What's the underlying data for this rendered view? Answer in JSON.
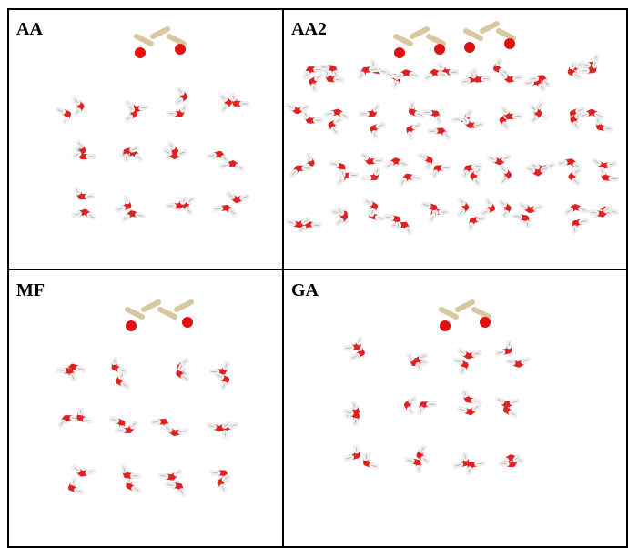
{
  "panels": [
    {
      "label": "AA"
    },
    {
      "label": "AA2"
    },
    {
      "label": "MF"
    },
    {
      "label": "GA"
    }
  ]
}
